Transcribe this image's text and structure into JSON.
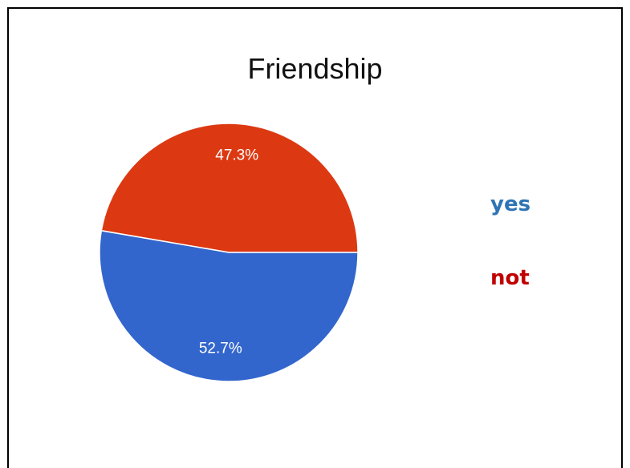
{
  "chart_data": {
    "type": "pie",
    "title": "Friendship",
    "slices": [
      {
        "label": "not",
        "value": 47.3,
        "display": "47.3%",
        "color": "#dc3912"
      },
      {
        "label": "yes",
        "value": 52.7,
        "display": "52.7%",
        "color": "#3366cc"
      }
    ],
    "legend": {
      "placement": "right",
      "entries": [
        {
          "label": "yes",
          "color": "#2e74b5"
        },
        {
          "label": "not",
          "color": "#c00000"
        }
      ]
    }
  }
}
